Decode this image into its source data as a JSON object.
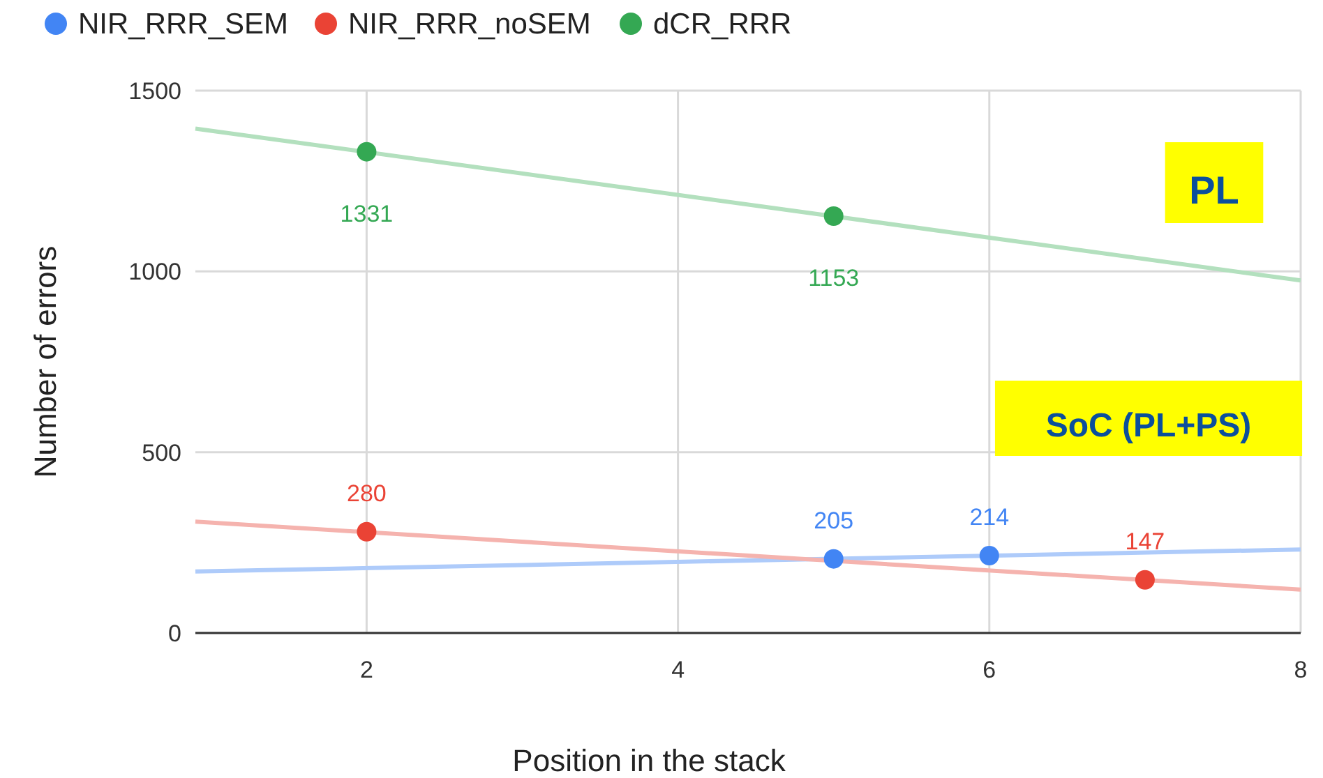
{
  "chart_data": {
    "type": "scatter",
    "xlabel": "Position in the stack",
    "ylabel": "Number of errors",
    "annotations": [
      "PL",
      "SoC (PL+PS)"
    ],
    "series": [
      {
        "name": "NIR_RRR_SEM",
        "color": "#4285f4",
        "x": [
          5,
          6
        ],
        "values": [
          205,
          214
        ],
        "value_labels": [
          "205",
          "214"
        ]
      },
      {
        "name": "NIR_RRR_noSEM",
        "color": "#ea4335",
        "x": [
          2,
          7
        ],
        "values": [
          280,
          147
        ],
        "value_labels": [
          "280",
          "147"
        ]
      },
      {
        "name": "dCR_RRR",
        "color": "#34a853",
        "x": [
          2,
          5
        ],
        "values": [
          1331,
          1153
        ],
        "value_labels": [
          "1331",
          "1153"
        ]
      },
      {
        "type": "line",
        "color": "#aecbfa",
        "marker": "none",
        "x": [
          0.9,
          8
        ],
        "values": [
          170,
          231
        ]
      },
      {
        "type": "line",
        "color": "#f5b3ae",
        "marker": "none",
        "x": [
          0.9,
          8
        ],
        "values": [
          308,
          120
        ]
      },
      {
        "type": "line",
        "color": "#b3e0be",
        "marker": "none",
        "x": [
          0.9,
          8
        ],
        "values": [
          1395,
          975
        ]
      }
    ],
    "xlim": [
      0.9,
      8
    ],
    "xticks": [
      2,
      4,
      6,
      8
    ],
    "ylim": [
      0,
      1500
    ],
    "yticks": [
      0,
      500,
      1000,
      1500
    ],
    "grid": true,
    "legend": "top",
    "marker": "circle"
  }
}
